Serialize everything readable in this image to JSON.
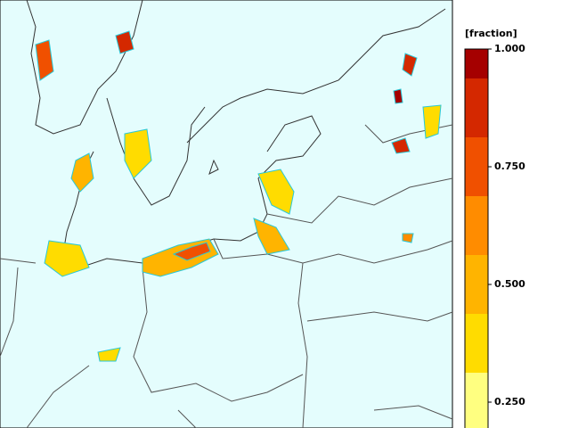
{
  "chart_data": {
    "type": "colorbar",
    "title": "[fraction]",
    "bins": [
      0.1875,
      0.3125,
      0.4375,
      0.5625,
      0.6875,
      0.8125,
      0.9375,
      1.0
    ],
    "colors": [
      "#ffff80",
      "#ffdc00",
      "#ffb400",
      "#ff8c00",
      "#f05000",
      "#d42800",
      "#a50000"
    ],
    "ylim": [
      0.1875,
      1.0
    ],
    "yticks": [
      {
        "value": 0.25,
        "label": "0.250"
      },
      {
        "value": 0.5,
        "label": "0.500"
      },
      {
        "value": 0.75,
        "label": "0.750"
      },
      {
        "value": 1.0,
        "label": "1.000"
      }
    ]
  }
}
